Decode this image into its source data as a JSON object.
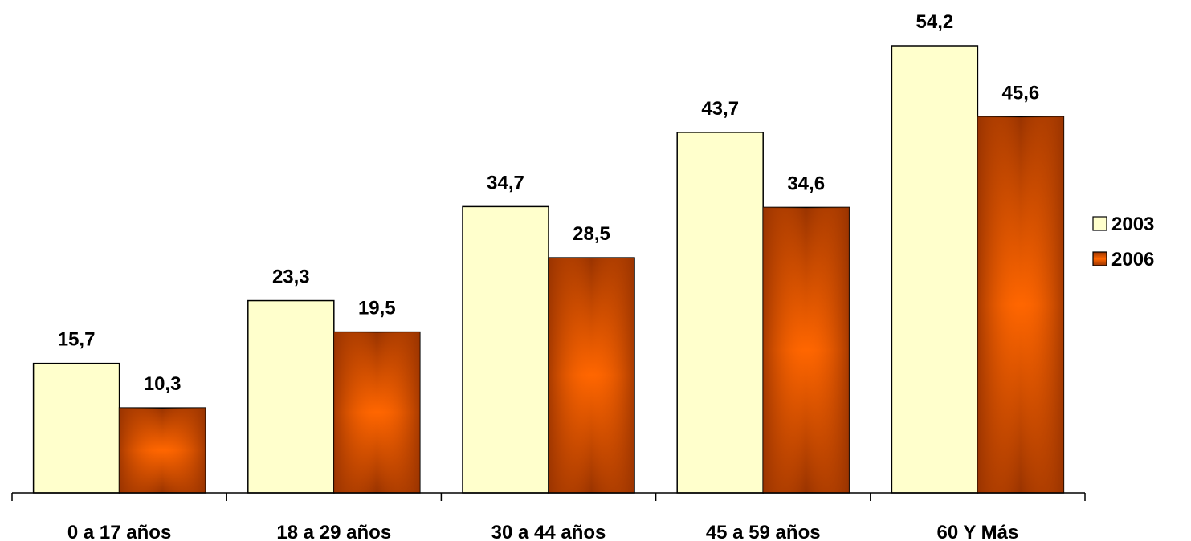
{
  "chart_data": {
    "type": "bar",
    "categories": [
      "0 a 17 años",
      "18 a 29 años",
      "30 a 44 años",
      "45 a 59 años",
      "60 Y Más"
    ],
    "series": [
      {
        "name": "2003",
        "values": [
          15.7,
          23.3,
          34.7,
          43.7,
          54.2
        ],
        "labels": [
          "15,7",
          "23,3",
          "34,7",
          "43,7",
          "54,2"
        ],
        "color": "#FFFFCC"
      },
      {
        "name": "2006",
        "values": [
          10.3,
          19.5,
          28.5,
          34.6,
          45.6
        ],
        "labels": [
          "10,3",
          "19,5",
          "28,5",
          "34,6",
          "45,6"
        ],
        "color": "#FF6600",
        "edge_color": "#993300"
      }
    ],
    "ylim": [
      0,
      54.2
    ],
    "grid": false,
    "legend_position": "right"
  }
}
